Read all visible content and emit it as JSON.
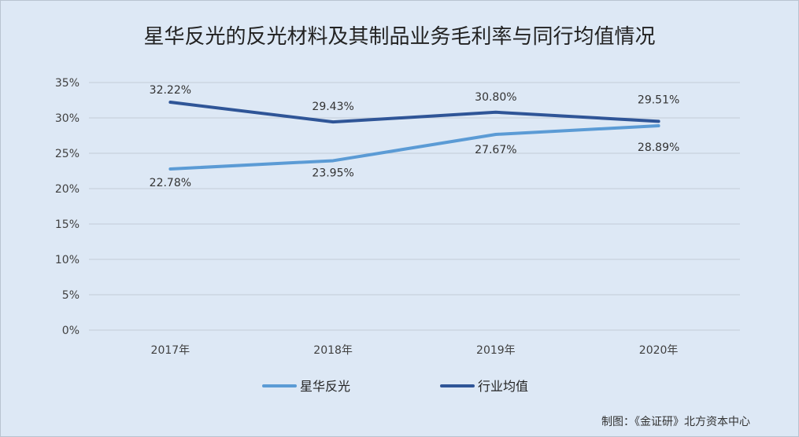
{
  "chart_data": {
    "type": "line",
    "title": "星华反光的反光材料及其制品业务毛利率与同行均值情况",
    "categories": [
      "2017年",
      "2018年",
      "2019年",
      "2020年"
    ],
    "yticks": [
      "0%",
      "5%",
      "10%",
      "15%",
      "20%",
      "25%",
      "30%",
      "35%"
    ],
    "ylim": [
      0,
      35
    ],
    "grid": true,
    "legend_position": "bottom",
    "series": [
      {
        "name": "星华反光",
        "color": "#5b9bd5",
        "values": [
          22.78,
          23.95,
          27.67,
          28.89
        ],
        "labels": [
          "22.78%",
          "23.95%",
          "27.67%",
          "28.89%"
        ]
      },
      {
        "name": "行业均值",
        "color": "#2f5597",
        "values": [
          32.22,
          29.43,
          30.8,
          29.51
        ],
        "labels": [
          "32.22%",
          "29.43%",
          "30.80%",
          "29.51%"
        ]
      }
    ]
  },
  "source": "制图：《金证研》北方资本中心"
}
